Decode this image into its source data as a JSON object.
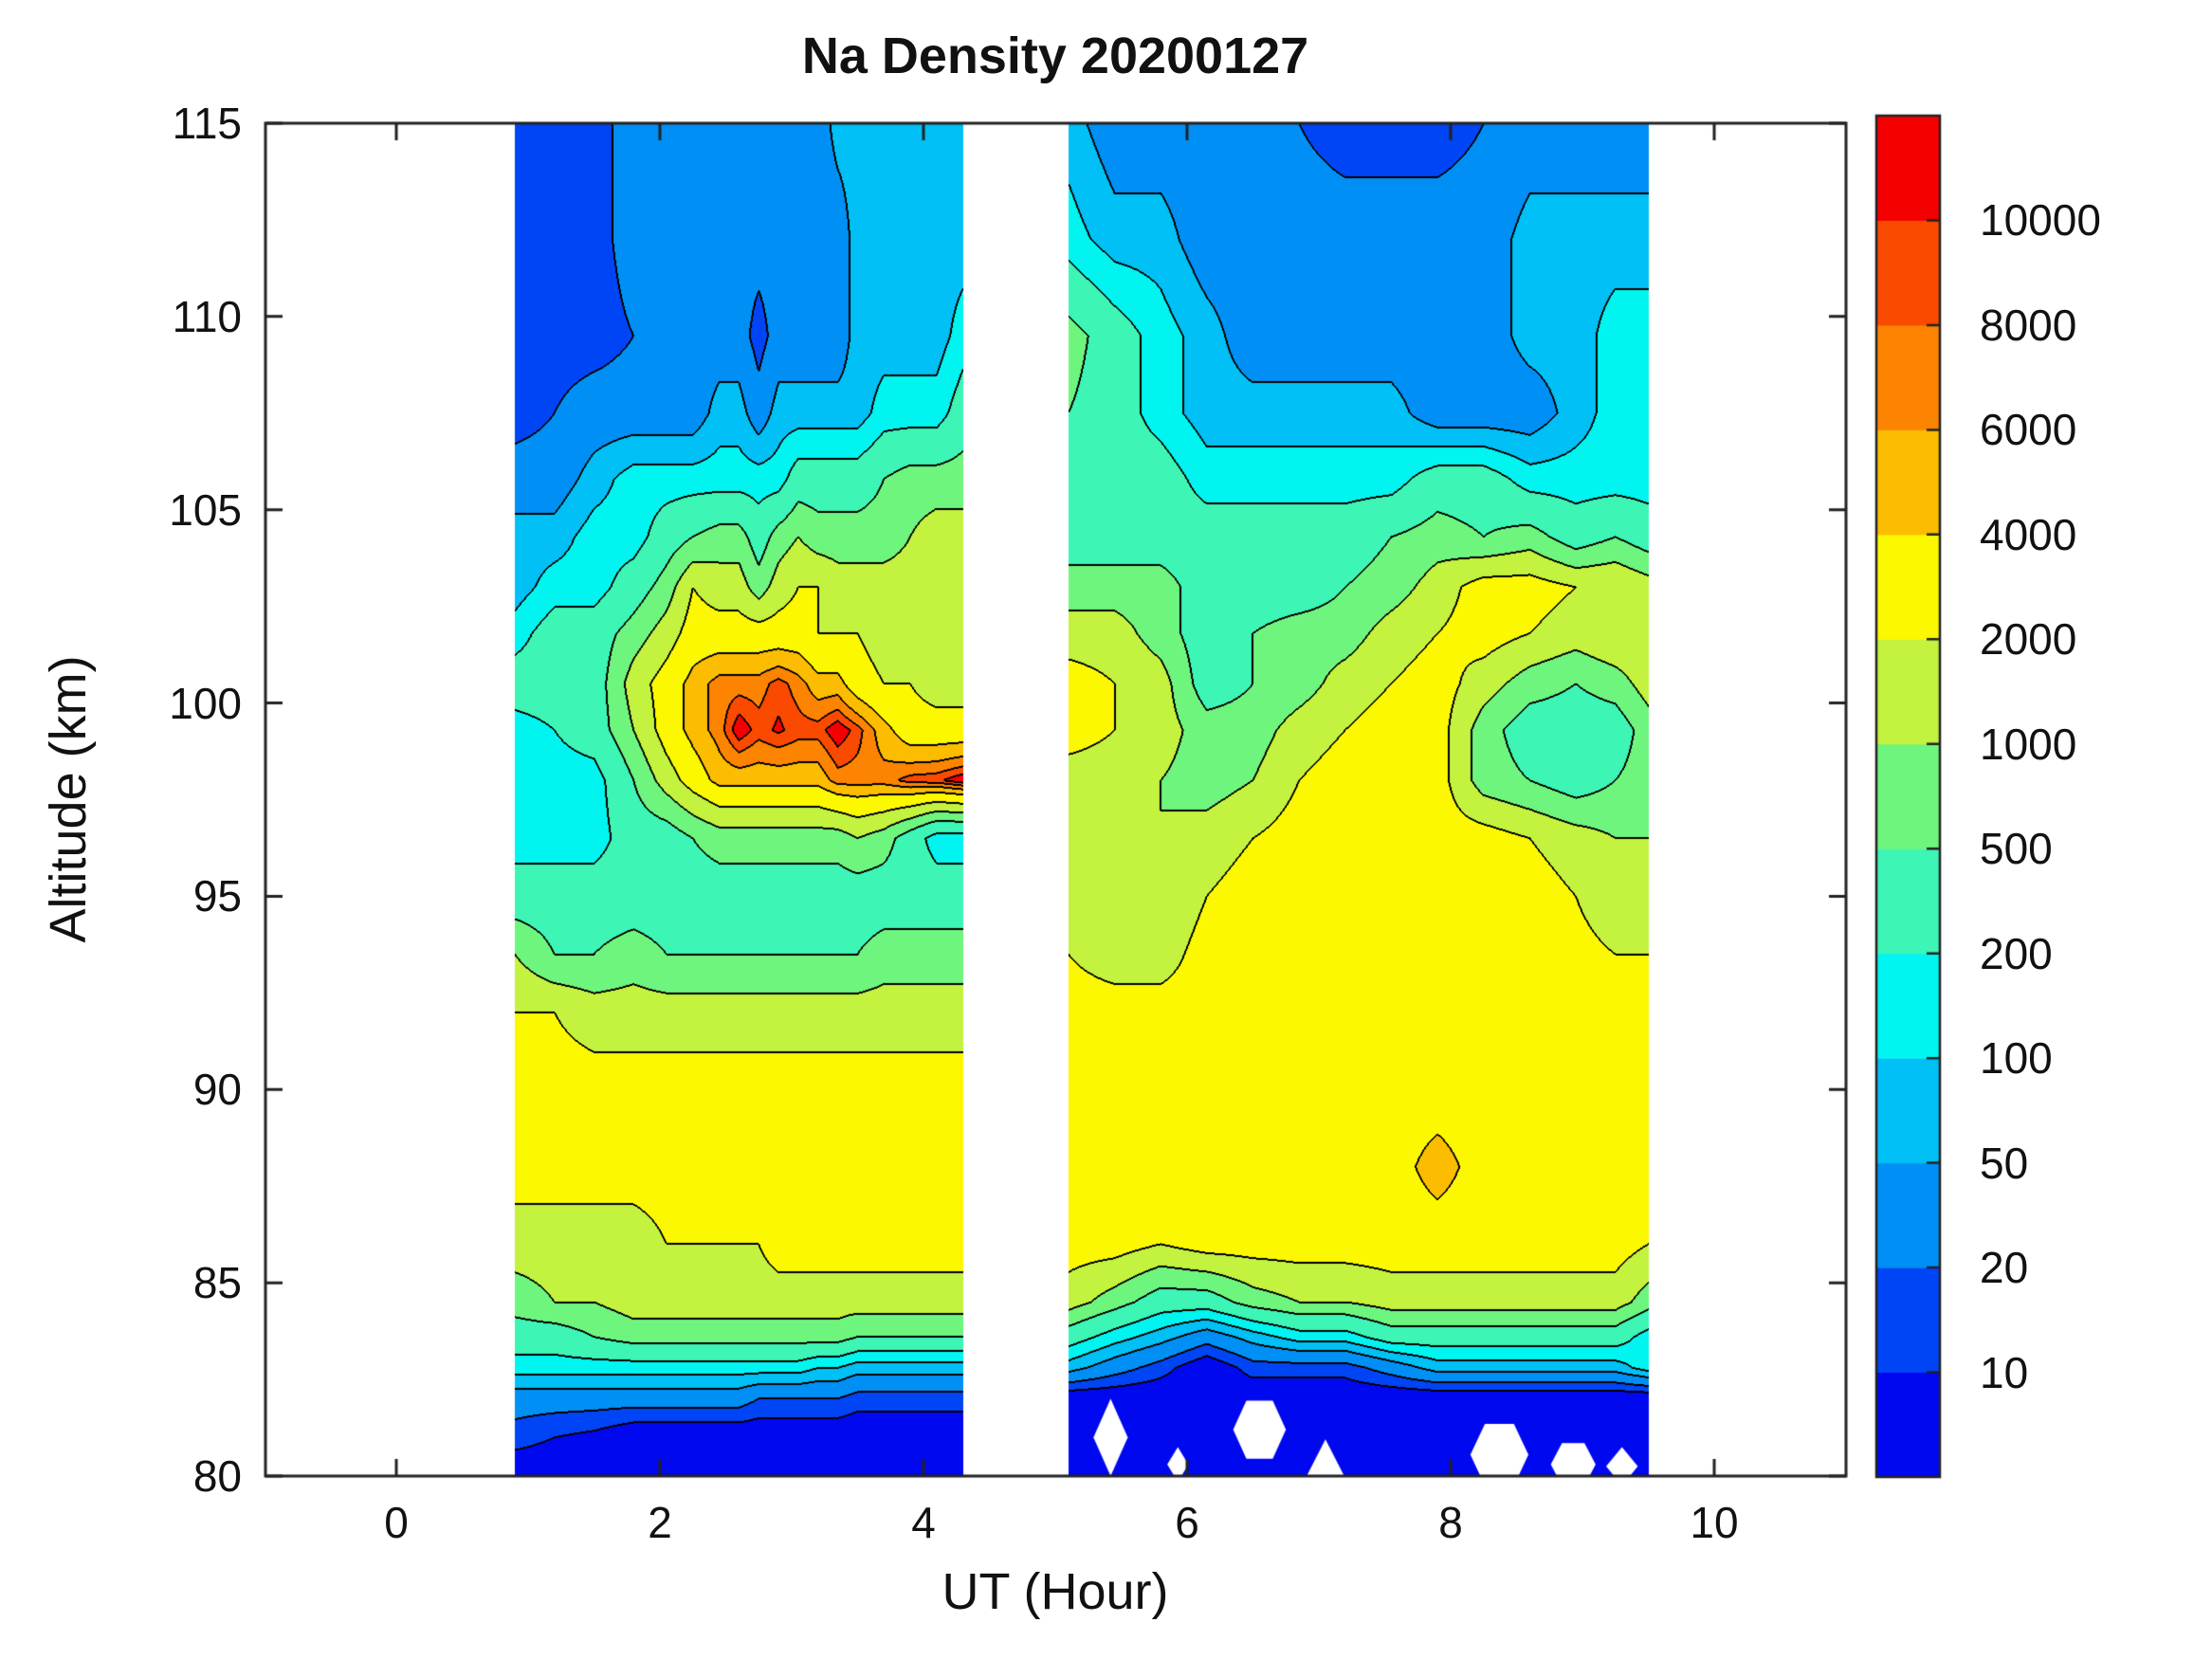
{
  "chart_data": {
    "type": "heatmap",
    "style": "filled-contour",
    "title": "Na Density 20200127",
    "xlabel": "UT (Hour)",
    "ylabel": "Altitude (km)",
    "xlim": [
      -1,
      11
    ],
    "ylim": [
      80,
      115
    ],
    "x_ticks": [
      0,
      2,
      4,
      6,
      8,
      10
    ],
    "y_ticks": [
      80,
      85,
      90,
      95,
      100,
      105,
      110,
      115
    ],
    "grid_on": false,
    "legend_position": "colorbar-right",
    "levels": [
      10,
      20,
      50,
      100,
      200,
      500,
      1000,
      2000,
      4000,
      6000,
      8000,
      10000
    ],
    "colorbar_labels": [
      "10",
      "20",
      "50",
      "100",
      "200",
      "500",
      "1000",
      "2000",
      "4000",
      "6000",
      "8000",
      "10000"
    ],
    "band_colors": [
      "#0008f0",
      "#0045f5",
      "#0090f5",
      "#00c0f5",
      "#00f5f0",
      "#3df5b4",
      "#6ef57d",
      "#c3f23f",
      "#fcf800",
      "#fcbc00",
      "#fc8400",
      "#fa4a00",
      "#f50000"
    ],
    "contour_line_color": "#000000",
    "data_segments_hours": [
      [
        0.9,
        4.3
      ],
      [
        5.1,
        9.5
      ]
    ],
    "grid": {
      "hours": [
        0.9,
        1.2,
        1.5,
        1.8,
        2.05,
        2.25,
        2.45,
        2.6,
        2.75,
        2.9,
        3.05,
        3.2,
        3.35,
        3.5,
        3.7,
        3.9,
        4.1,
        4.3,
        5.1,
        5.45,
        5.8,
        6.15,
        6.5,
        6.85,
        7.2,
        7.55,
        7.9,
        8.25,
        8.6,
        8.95,
        9.25,
        9.5
      ],
      "altitudes_km": [
        80,
        81,
        82,
        82.8,
        83.6,
        84.5,
        86,
        88,
        90,
        92,
        93.5,
        95,
        96.5,
        98,
        99.3,
        100.5,
        101.8,
        103,
        104.3,
        105.8,
        107.5,
        109.5,
        112,
        115
      ],
      "density": [
        [
          5,
          5,
          5,
          5,
          5,
          5,
          5,
          5,
          5,
          5,
          5,
          5,
          5,
          5,
          5,
          5,
          5,
          5,
          5,
          5,
          5,
          5,
          5,
          5,
          5,
          5,
          5,
          5,
          5,
          5,
          5,
          5
        ],
        [
          14,
          10,
          8,
          5,
          5,
          5,
          5,
          5,
          5,
          5,
          5,
          5,
          5,
          5,
          5,
          5,
          5,
          5,
          5,
          5,
          5,
          5,
          5,
          5,
          5,
          5,
          5,
          5,
          5,
          5,
          5,
          5
        ],
        [
          30,
          30,
          30,
          30,
          30,
          30,
          30,
          30,
          20,
          20,
          20,
          20,
          20,
          14,
          14,
          14,
          14,
          14,
          5,
          5,
          5,
          5,
          5,
          5,
          5,
          5,
          5,
          5,
          5,
          5,
          5,
          5
        ],
        [
          140,
          140,
          140,
          140,
          140,
          140,
          140,
          140,
          140,
          140,
          140,
          100,
          100,
          70,
          70,
          70,
          70,
          70,
          70,
          30,
          14,
          5,
          14,
          14,
          14,
          30,
          70,
          70,
          70,
          70,
          70,
          140
        ],
        [
          320,
          320,
          500,
          700,
          700,
          700,
          700,
          700,
          700,
          700,
          700,
          700,
          700,
          500,
          500,
          500,
          500,
          500,
          320,
          140,
          70,
          30,
          70,
          140,
          140,
          320,
          320,
          320,
          320,
          320,
          320,
          140
        ],
        [
          700,
          1000,
          1000,
          1400,
          1400,
          1400,
          1400,
          1400,
          1400,
          1400,
          1400,
          1400,
          1400,
          1400,
          1400,
          1400,
          1400,
          1400,
          1400,
          700,
          320,
          320,
          700,
          1000,
          1000,
          1400,
          1400,
          1400,
          1400,
          1400,
          1400,
          700
        ],
        [
          1400,
          1400,
          1400,
          1400,
          2000,
          2000,
          2000,
          2000,
          2000,
          2800,
          2800,
          2800,
          2800,
          2800,
          2800,
          2800,
          2800,
          2800,
          2800,
          2800,
          2000,
          2800,
          2800,
          2800,
          2800,
          2800,
          2800,
          2800,
          2800,
          2800,
          2800,
          2000
        ],
        [
          2800,
          2800,
          2800,
          2800,
          2800,
          2800,
          2800,
          2800,
          2800,
          2800,
          2800,
          2800,
          2800,
          2800,
          2800,
          2800,
          2800,
          2800,
          2800,
          2800,
          2800,
          2800,
          2800,
          2800,
          2800,
          3000,
          5200,
          3000,
          2800,
          2800,
          2800,
          2800
        ],
        [
          2800,
          2800,
          2800,
          2800,
          2800,
          2800,
          2800,
          2800,
          2800,
          2800,
          2800,
          2800,
          2800,
          2800,
          2800,
          2800,
          2800,
          2800,
          2800,
          2800,
          2800,
          2800,
          2800,
          2800,
          2800,
          2800,
          2800,
          2800,
          2800,
          2800,
          2800,
          2800
        ],
        [
          2000,
          2000,
          1400,
          1400,
          1400,
          1400,
          1400,
          1400,
          1400,
          1400,
          1400,
          1400,
          1400,
          1400,
          1400,
          1400,
          1400,
          1400,
          2800,
          2800,
          2800,
          2800,
          2800,
          2800,
          2800,
          2800,
          2800,
          2800,
          2800,
          2800,
          2800,
          2800
        ],
        [
          1000,
          500,
          500,
          700,
          500,
          500,
          500,
          500,
          500,
          500,
          500,
          500,
          500,
          500,
          700,
          700,
          700,
          700,
          2000,
          1400,
          1400,
          2800,
          2800,
          2800,
          2800,
          2800,
          2800,
          2800,
          2800,
          2400,
          2000,
          2000
        ],
        [
          320,
          320,
          320,
          320,
          320,
          320,
          320,
          320,
          320,
          320,
          320,
          320,
          320,
          320,
          320,
          320,
          320,
          320,
          1400,
          1000,
          1000,
          2000,
          2800,
          2800,
          2800,
          2800,
          2800,
          2800,
          2800,
          2000,
          1400,
          1400
        ],
        [
          140,
          140,
          140,
          320,
          320,
          500,
          700,
          700,
          700,
          700,
          700,
          700,
          700,
          1000,
          700,
          320,
          140,
          140,
          1400,
          1000,
          1000,
          1400,
          2000,
          2800,
          2800,
          2800,
          2800,
          2800,
          2000,
          1400,
          1000,
          1000
        ],
        [
          140,
          140,
          140,
          500,
          1400,
          2800,
          4800,
          4800,
          4800,
          4800,
          4800,
          4800,
          7000,
          7000,
          7000,
          9000,
          9500,
          12000,
          1400,
          1400,
          1000,
          700,
          1000,
          2000,
          2800,
          2800,
          2800,
          700,
          500,
          320,
          500,
          700
        ],
        [
          140,
          200,
          320,
          1000,
          2800,
          4800,
          7000,
          12000,
          9000,
          10500,
          9000,
          9000,
          12000,
          9000,
          4800,
          2800,
          2800,
          2800,
          2800,
          2000,
          1400,
          700,
          700,
          1400,
          2000,
          2800,
          2800,
          700,
          320,
          320,
          320,
          700
        ],
        [
          320,
          320,
          320,
          1400,
          2800,
          4800,
          7000,
          7000,
          7000,
          9000,
          7000,
          4800,
          4800,
          2800,
          2000,
          2000,
          1400,
          1400,
          2800,
          2000,
          1400,
          320,
          500,
          700,
          1400,
          2000,
          2800,
          1400,
          700,
          500,
          700,
          1400
        ],
        [
          140,
          320,
          320,
          700,
          1400,
          2800,
          2800,
          2800,
          2800,
          2800,
          2800,
          2000,
          2000,
          2000,
          1400,
          1400,
          1400,
          1400,
          1400,
          1400,
          700,
          320,
          500,
          700,
          700,
          1400,
          2000,
          2800,
          2000,
          1400,
          2000,
          2000
        ],
        [
          70,
          140,
          140,
          320,
          700,
          2000,
          1400,
          1400,
          700,
          1400,
          2000,
          2000,
          1400,
          1400,
          1400,
          1400,
          1400,
          2000,
          700,
          700,
          700,
          320,
          320,
          320,
          500,
          700,
          1400,
          2800,
          2800,
          2000,
          2000,
          1400
        ],
        [
          70,
          70,
          140,
          140,
          320,
          500,
          700,
          700,
          320,
          700,
          1000,
          700,
          700,
          700,
          700,
          1000,
          1400,
          1400,
          320,
          320,
          320,
          320,
          320,
          320,
          320,
          500,
          700,
          500,
          700,
          320,
          500,
          320
        ],
        [
          30,
          30,
          70,
          140,
          140,
          140,
          140,
          140,
          140,
          140,
          320,
          320,
          320,
          320,
          500,
          700,
          700,
          700,
          320,
          320,
          320,
          140,
          140,
          140,
          140,
          140,
          320,
          320,
          140,
          140,
          140,
          140
        ],
        [
          14,
          20,
          30,
          30,
          30,
          30,
          70,
          70,
          30,
          70,
          70,
          70,
          70,
          70,
          140,
          140,
          140,
          320,
          500,
          320,
          140,
          70,
          70,
          70,
          70,
          70,
          30,
          30,
          30,
          70,
          140,
          140
        ],
        [
          14,
          14,
          14,
          20,
          30,
          30,
          30,
          30,
          14,
          30,
          30,
          30,
          30,
          70,
          70,
          70,
          70,
          140,
          700,
          320,
          140,
          70,
          30,
          30,
          30,
          30,
          30,
          30,
          70,
          70,
          140,
          140
        ],
        [
          14,
          14,
          14,
          30,
          30,
          30,
          30,
          30,
          30,
          30,
          30,
          30,
          30,
          70,
          70,
          70,
          70,
          70,
          140,
          70,
          70,
          30,
          30,
          30,
          30,
          30,
          30,
          30,
          70,
          70,
          70,
          70
        ],
        [
          14,
          14,
          14,
          30,
          30,
          30,
          30,
          30,
          30,
          30,
          30,
          30,
          70,
          70,
          70,
          70,
          70,
          70,
          70,
          30,
          30,
          30,
          20,
          20,
          14,
          14,
          14,
          20,
          30,
          30,
          30,
          30
        ]
      ]
    },
    "missing_data_markers": [
      {
        "shape": "diamond",
        "hour": 5.42,
        "alt": 81.0,
        "rh": 0.13,
        "ra": 1.0
      },
      {
        "shape": "diamond",
        "hour": 5.93,
        "alt": 80.3,
        "rh": 0.08,
        "ra": 0.45
      },
      {
        "shape": "hexagon",
        "hour": 6.55,
        "alt": 81.2,
        "rh": 0.2,
        "ra": 0.75
      },
      {
        "shape": "triangle",
        "hour": 7.05,
        "alt": 80.35,
        "rh": 0.18,
        "ra": 0.6
      },
      {
        "shape": "hexagon",
        "hour": 8.37,
        "alt": 80.55,
        "rh": 0.22,
        "ra": 0.8
      },
      {
        "shape": "hexagon",
        "hour": 8.93,
        "alt": 80.3,
        "rh": 0.17,
        "ra": 0.55
      },
      {
        "shape": "diamond",
        "hour": 9.3,
        "alt": 80.25,
        "rh": 0.12,
        "ra": 0.5
      }
    ]
  }
}
